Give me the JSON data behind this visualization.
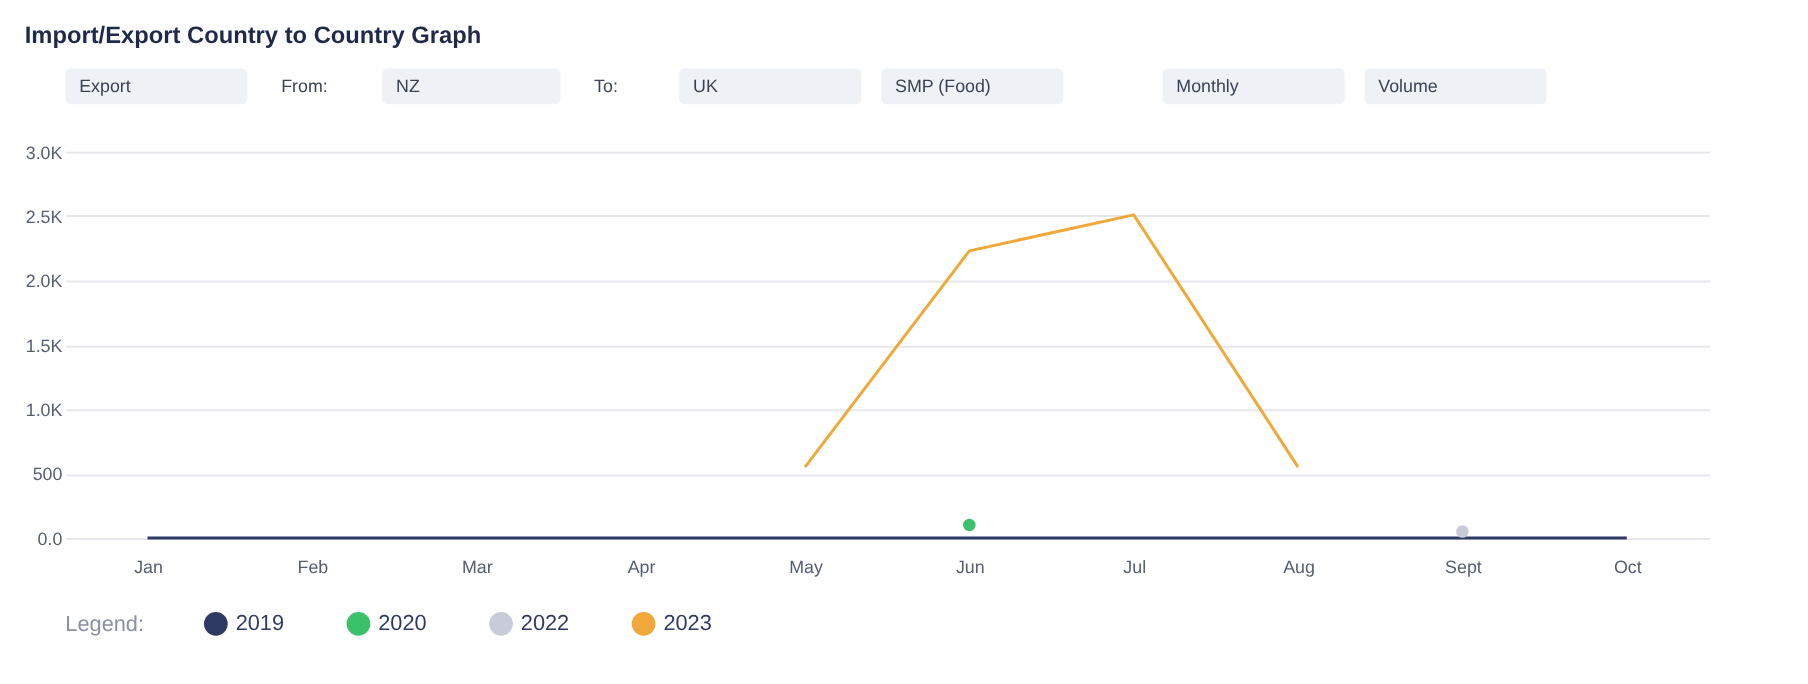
{
  "chart_data": {
    "type": "line",
    "title": "Import/Export Country to Country Graph",
    "annotations": [
      "Export",
      "From:",
      "NZ",
      "To:",
      "UK",
      "SMP (Food)",
      "Monthly",
      "Volume"
    ],
    "categories": [
      "Jan",
      "Feb",
      "Mar",
      "Apr",
      "May",
      "Jun",
      "Jul",
      "Aug",
      "Sept",
      "Oct"
    ],
    "series": [
      {
        "name": "2019",
        "color": "#2e3a63",
        "values": [
          0,
          0,
          0,
          0,
          0,
          0,
          0,
          0,
          0,
          0
        ]
      },
      {
        "name": "2020",
        "color": "#3cc16b",
        "type": "scatter",
        "marker": "circle",
        "values": [
          null,
          null,
          null,
          null,
          null,
          100,
          null,
          null,
          null,
          null
        ]
      },
      {
        "name": "2022",
        "color": "#c8ccd8",
        "type": "scatter",
        "marker": "circle",
        "values": [
          null,
          null,
          null,
          null,
          null,
          null,
          null,
          null,
          50,
          null
        ]
      },
      {
        "name": "2023",
        "color": "#f0a83a",
        "values": [
          null,
          null,
          null,
          null,
          550,
          2230,
          2510,
          550,
          null,
          null
        ]
      }
    ],
    "ylim": [
      0,
      3000
    ],
    "yticks": [
      {
        "value": 0,
        "label": "0.0"
      },
      500,
      {
        "value": 1000,
        "label": "1.0K"
      },
      {
        "value": 1500,
        "label": "1.5K"
      },
      {
        "value": 2000,
        "label": "2.0K"
      },
      {
        "value": 2500,
        "label": "2.5K"
      },
      {
        "value": 3000,
        "label": "3.0K"
      }
    ],
    "grid": "y",
    "legend": "bottom",
    "legend_title": "Legend:",
    "marker": "none",
    "line_style": "solid"
  }
}
